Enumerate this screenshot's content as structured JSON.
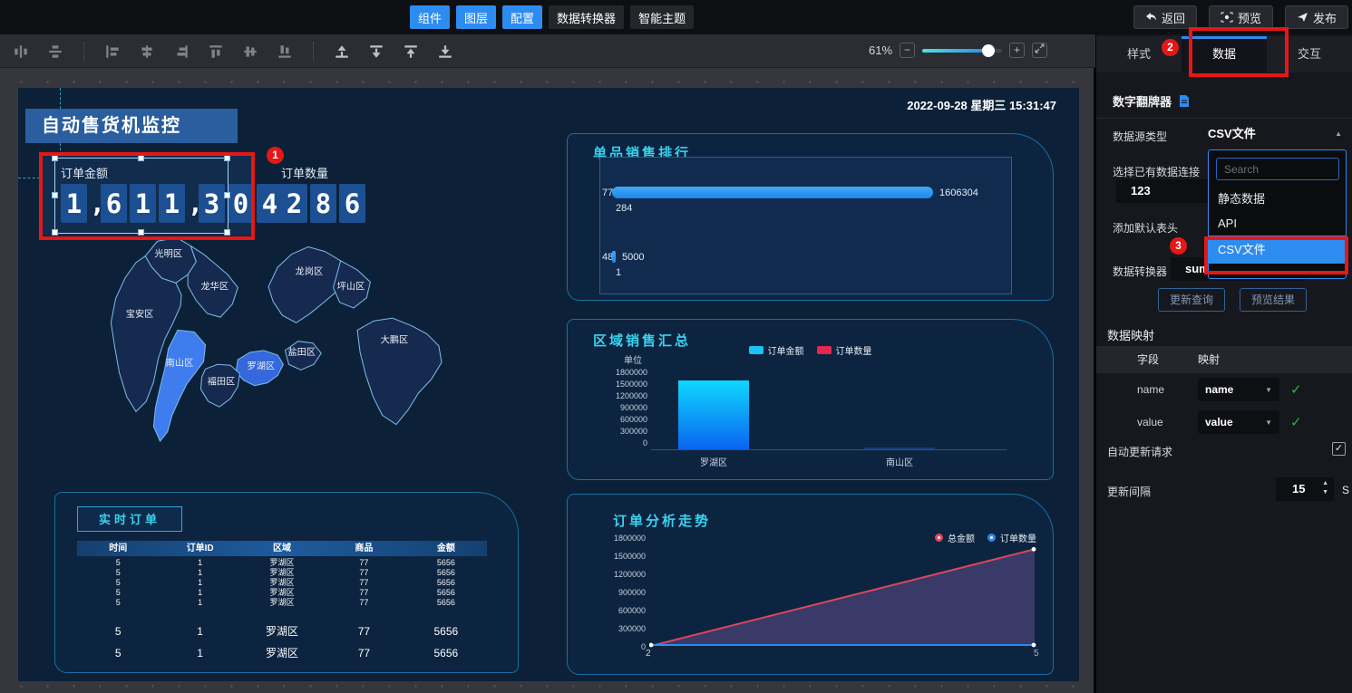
{
  "annotations": {
    "step1": "1",
    "step2": "2",
    "step3": "3"
  },
  "top_bar": {
    "menu_buttons": [
      {
        "label": "组件",
        "active": true
      },
      {
        "label": "图层",
        "active": true
      },
      {
        "label": "配置",
        "active": true
      },
      {
        "label": "数据转换器",
        "active": false
      },
      {
        "label": "智能主题",
        "active": false
      }
    ],
    "back_label": "返回",
    "preview_label": "预览",
    "publish_label": "发布"
  },
  "toolbar": {
    "zoom_value": "61%",
    "zoom_out": "−",
    "zoom_in": "+"
  },
  "canvas": {
    "timestamp": "2022-09-28 星期三 15:31:47",
    "dashboard_title": "自动售货机监控",
    "kpi_amount": {
      "label": "订单金额",
      "value": "1,611,304"
    },
    "kpi_count": {
      "label": "订单数量",
      "value": "286"
    },
    "map": {
      "districts": [
        "光明区",
        "龙华区",
        "宝安区",
        "龙岗区",
        "坪山区",
        "盐田区",
        "大鹏区",
        "南山区",
        "罗湖区",
        "福田区"
      ],
      "highlighted": [
        "南山区",
        "罗湖区"
      ],
      "highlight_color": "#3f7ced",
      "base_color": "#16294e"
    },
    "product_rank": {
      "title": "单品销售排行",
      "chart_data": {
        "type": "bar",
        "orientation": "horizontal",
        "categories": [
          "77",
          "48"
        ],
        "values": [
          1606304,
          5000
        ],
        "value_labels": [
          "1606304",
          "5000"
        ],
        "sub_labels": [
          "284",
          "1"
        ],
        "bar_color": "#2196f3"
      }
    },
    "region_sales": {
      "title": "区域销售汇总",
      "chart_data": {
        "type": "bar",
        "unit_label": "单位",
        "legend": [
          {
            "label": "订单金额",
            "color": "#19c3f5"
          },
          {
            "label": "订单数量",
            "color": "#e5274e"
          }
        ],
        "yticks": [
          "1800000",
          "1500000",
          "1200000",
          "900000",
          "600000",
          "300000",
          "0"
        ],
        "ymax": 1800000,
        "categories": [
          "罗湖区",
          "南山区"
        ],
        "values": [
          1606304,
          5656
        ],
        "bar_gradient_top": "#0fd8ff",
        "bar_gradient_bottom": "#0a64f0"
      }
    },
    "realtime_orders": {
      "title": "实时订单",
      "headers": [
        "时间",
        "订单ID",
        "区域",
        "商品",
        "金额"
      ],
      "small_rows": [
        [
          "5",
          "1",
          "罗湖区",
          "77",
          "5656"
        ],
        [
          "5",
          "1",
          "罗湖区",
          "77",
          "5656"
        ],
        [
          "5",
          "1",
          "罗湖区",
          "77",
          "5656"
        ],
        [
          "5",
          "1",
          "罗湖区",
          "77",
          "5656"
        ],
        [
          "5",
          "1",
          "罗湖区",
          "77",
          "5656"
        ]
      ],
      "big_rows": [
        [
          "5",
          "1",
          "罗湖区",
          "77",
          "5656"
        ],
        [
          "5",
          "1",
          "罗湖区",
          "77",
          "5656"
        ]
      ]
    },
    "trend": {
      "title": "订单分析走势",
      "chart_data": {
        "type": "line",
        "legend": [
          {
            "label": "总金额",
            "color": "#e0455e"
          },
          {
            "label": "订单数量",
            "color": "#2d8cf0"
          }
        ],
        "yticks": [
          "1800000",
          "1500000",
          "1200000",
          "900000",
          "600000",
          "300000",
          "0"
        ],
        "ymax": 1800000,
        "x": [
          "2",
          "5"
        ],
        "series": [
          {
            "name": "总金额",
            "values": [
              0,
              1600000
            ],
            "color": "#e0455e"
          },
          {
            "name": "订单数量",
            "values": [
              0,
              0
            ],
            "color": "#2d8cf0"
          }
        ],
        "area_fill": "rgba(130,95,170,0.38)"
      }
    }
  },
  "right_panel": {
    "tabs": [
      {
        "label": "样式",
        "active": false
      },
      {
        "label": "数据",
        "active": true
      },
      {
        "label": "交互",
        "active": false
      }
    ],
    "component_name": "数字翻牌器",
    "datasource": {
      "label": "数据源类型",
      "value": "CSV文件",
      "search_placeholder": "Search",
      "options": [
        "静态数据",
        "API",
        "CSV文件"
      ],
      "selected_option": "CSV文件"
    },
    "connection": {
      "label": "选择已有数据连接",
      "value": "123"
    },
    "add_header_label": "添加默认表头",
    "transformer": {
      "label": "数据转换器",
      "value": "sum"
    },
    "update_query_label": "更新查询",
    "preview_result_label": "预览结果",
    "mapping": {
      "title": "数据映射",
      "col_field": "字段",
      "col_map": "映射",
      "rows": [
        {
          "field": "name",
          "map": "name"
        },
        {
          "field": "value",
          "map": "value"
        }
      ]
    },
    "auto_update": {
      "label": "自动更新请求",
      "checked": true
    },
    "interval": {
      "label": "更新间隔",
      "value": "15",
      "unit": "S"
    }
  }
}
